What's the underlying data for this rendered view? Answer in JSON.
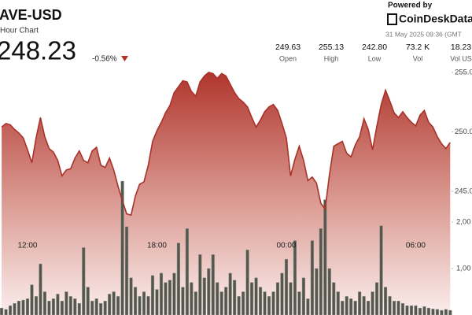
{
  "header": {
    "symbol": "AVE-USD",
    "subtitle": "Hour Chart",
    "price": "248.23",
    "change": "-0.56%",
    "stats": [
      {
        "value": "249.63",
        "label": "Open"
      },
      {
        "value": "255.13",
        "label": "High"
      },
      {
        "value": "242.80",
        "label": "Low"
      },
      {
        "value": "73.2 K",
        "label": "Vol"
      },
      {
        "value": "18.23",
        "label": "Vol US"
      }
    ],
    "powered": "Powered by",
    "brand": "CoinDeskData",
    "date": "31 May 2025 09:36 (GMT"
  },
  "chart_data": {
    "type": "line",
    "x": [
      0,
      1,
      2,
      3,
      4,
      5,
      6,
      7,
      8,
      9,
      10,
      11,
      12,
      13,
      14,
      15,
      16,
      17,
      18,
      19,
      20,
      21,
      22,
      23,
      24,
      25,
      26,
      27,
      28,
      29,
      30,
      31,
      32,
      33,
      34,
      35,
      36,
      37,
      38,
      39,
      40,
      41,
      42,
      43,
      44,
      45,
      46,
      47,
      48,
      49,
      50,
      51,
      52,
      53,
      54,
      55,
      56,
      57,
      58,
      59,
      60,
      61,
      62,
      63,
      64,
      65,
      66,
      67,
      68,
      69,
      70,
      71,
      72,
      73,
      74,
      75,
      76,
      77,
      78,
      79,
      80,
      81,
      82,
      83,
      84,
      85,
      86,
      87,
      88,
      89,
      90,
      91,
      92,
      93,
      94,
      95,
      96,
      97,
      98,
      99,
      100,
      101,
      102,
      103,
      104
    ],
    "series": [
      {
        "color": "#a8322a",
        "values": [
          250.4,
          250.7,
          250.6,
          250.2,
          249.9,
          249.5,
          248.5,
          247.4,
          249.5,
          251.2,
          249.6,
          248.6,
          248.3,
          247.6,
          246.3,
          246.8,
          246.9,
          247.8,
          248.4,
          247.6,
          247.4,
          248.4,
          248.7,
          247.2,
          247.0,
          247.8,
          246.8,
          245.4,
          244.2,
          243.1,
          243.0,
          244.6,
          245.6,
          245.8,
          247.2,
          249.2,
          250.1,
          250.8,
          251.6,
          252.2,
          253.3,
          253.8,
          254.3,
          254.2,
          253.4,
          253.0,
          254.2,
          254.7,
          255.0,
          254.9,
          254.5,
          254.9,
          254.7,
          254.0,
          253.3,
          252.8,
          252.5,
          252.1,
          251.2,
          250.4,
          251.0,
          251.7,
          252.1,
          252.3,
          251.8,
          250.7,
          249.5,
          246.3,
          247.7,
          248.8,
          247.6,
          245.9,
          246.2,
          245.7,
          244.0,
          243.5,
          246.4,
          248.8,
          249.0,
          249.2,
          248.2,
          247.9,
          248.9,
          249.6,
          251.1,
          250.2,
          248.5,
          250.5,
          252.3,
          253.5,
          252.6,
          251.6,
          251.2,
          251.7,
          251.2,
          250.8,
          250.5,
          251.4,
          251.8,
          250.8,
          250.4,
          249.6,
          249.0,
          248.6,
          249.1
        ]
      },
      {
        "type": "bar",
        "axis": "y2",
        "color": "#53574d",
        "values": [
          150,
          120,
          200,
          250,
          300,
          320,
          350,
          650,
          400,
          1100,
          500,
          300,
          350,
          450,
          300,
          500,
          400,
          350,
          250,
          1450,
          600,
          300,
          350,
          250,
          300,
          450,
          500,
          400,
          2880,
          1900,
          800,
          600,
          400,
          500,
          400,
          850,
          550,
          900,
          700,
          750,
          900,
          1550,
          600,
          1860,
          700,
          500,
          1300,
          800,
          1000,
          1300,
          700,
          500,
          600,
          900,
          750,
          400,
          500,
          1400,
          700,
          800,
          600,
          500,
          400,
          500,
          700,
          900,
          1200,
          700,
          1600,
          500,
          800,
          350,
          1600,
          1000,
          1860,
          2480,
          1000,
          700,
          500,
          300,
          400,
          350,
          300,
          500,
          400,
          300,
          500,
          700,
          1920,
          600,
          400,
          300,
          300,
          250,
          200,
          200,
          200,
          150,
          180,
          150,
          130,
          120,
          100,
          120,
          100
        ]
      }
    ],
    "xlim": [
      -0.38,
      109.05
    ],
    "xticks": [
      {
        "value": 6,
        "label": "12:00"
      },
      {
        "value": 36,
        "label": "18:00"
      },
      {
        "value": 66,
        "label": "00:00"
      },
      {
        "value": 96,
        "label": "06:00"
      }
    ],
    "ylim": [
      234.6,
      255.79
    ],
    "yticks": [
      {
        "value": 245,
        "label": "245.0"
      },
      {
        "value": 250,
        "label": "250.0"
      },
      {
        "value": 255,
        "label": "255.0"
      }
    ],
    "y2lim": [
      0,
      5424
    ],
    "y2ticks": [
      {
        "value": 1000,
        "label": "1,00"
      },
      {
        "value": 2000,
        "label": "2,00"
      }
    ]
  }
}
